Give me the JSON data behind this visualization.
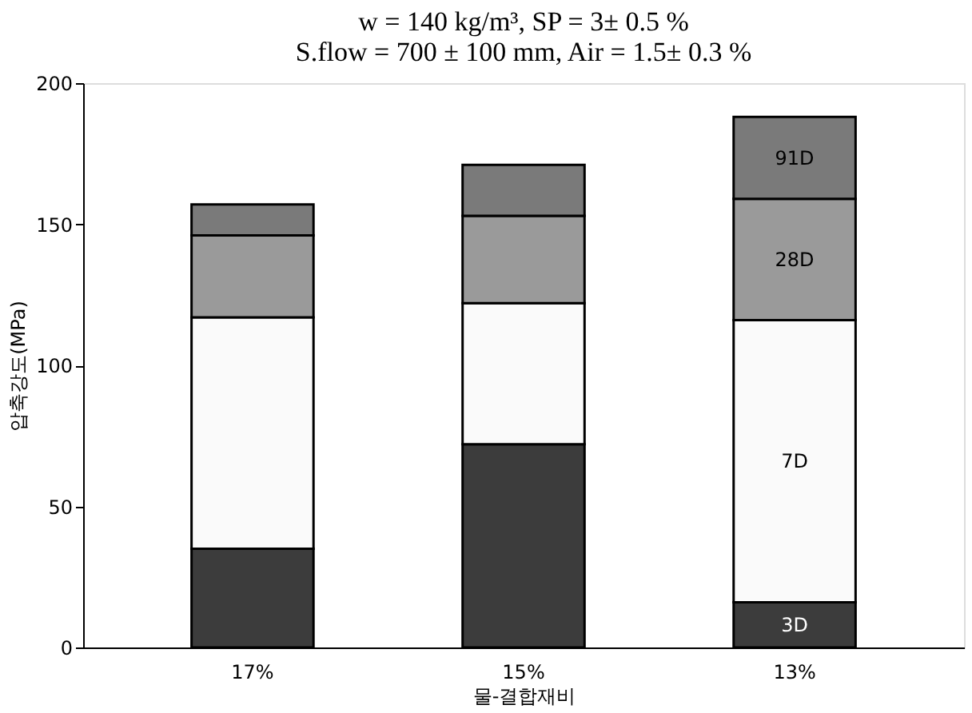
{
  "chart_data": {
    "type": "bar",
    "stacked": true,
    "title": [
      "w = 140 kg/m³,  SP = 3± 0.5 %",
      "S.flow = 700 ± 100 mm, Air = 1.5± 0.3 %"
    ],
    "xlabel": "물-결합재비",
    "ylabel": "압축강도(MPa)",
    "categories": [
      "17%",
      "15%",
      "13%"
    ],
    "series": [
      {
        "name": "3D",
        "color": "#3c3c3c",
        "values": [
          35,
          72,
          16
        ]
      },
      {
        "name": "7D",
        "color": "#fafafa",
        "values": [
          82,
          50,
          100
        ]
      },
      {
        "name": "28D",
        "color": "#9a9a9a",
        "values": [
          29,
          31,
          43
        ]
      },
      {
        "name": "91D",
        "color": "#7a7a7a",
        "values": [
          11,
          18,
          29
        ]
      }
    ],
    "ylim": [
      0,
      200
    ],
    "yticks": [
      0,
      50,
      100,
      150,
      200
    ],
    "grid": false
  }
}
